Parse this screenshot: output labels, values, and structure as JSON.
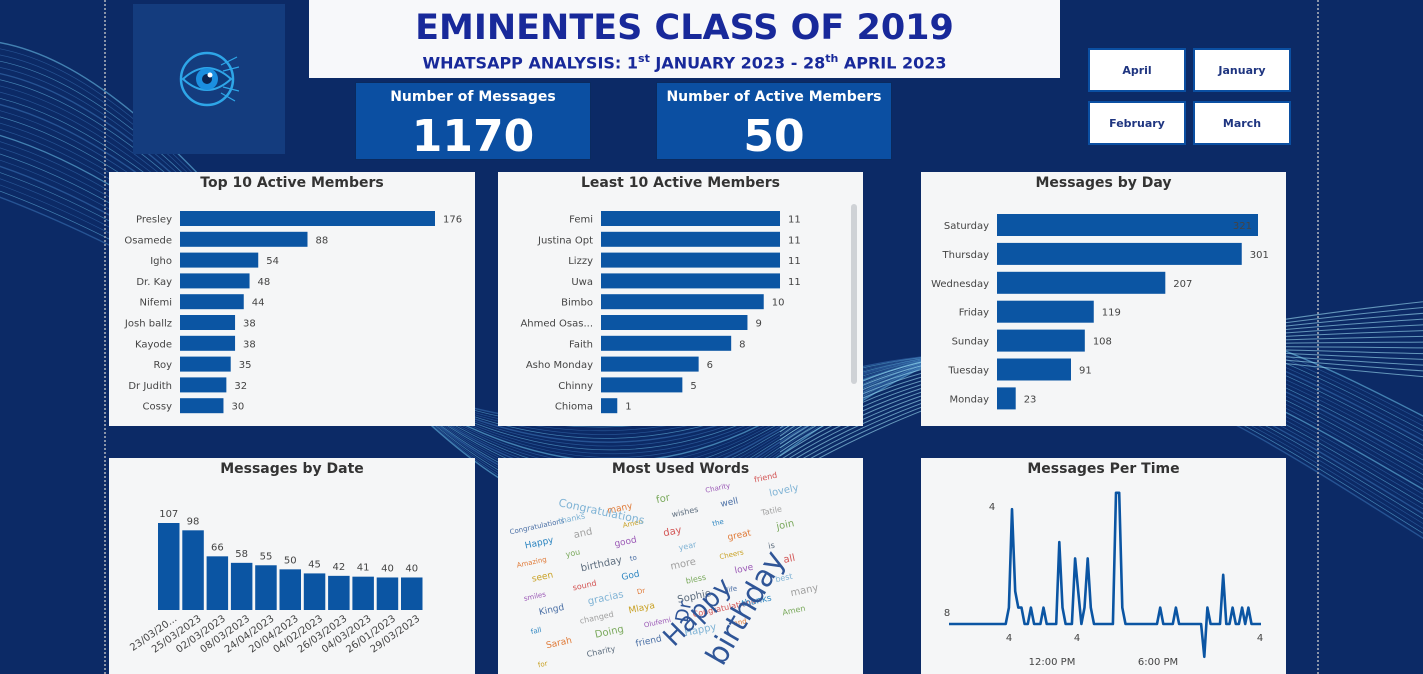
{
  "header": {
    "title": "EMINENTES CLASS OF 2019",
    "sub_pre": "WHATSAPP ANALYSIS: 1",
    "sub_sup1": "st",
    "sub_mid": " JANUARY 2023 - 28",
    "sub_sup2": "th",
    "sub_post": " APRIL 2023"
  },
  "kpis": {
    "messages_label": "Number of Messages",
    "messages_value": "1170",
    "members_label": "Number of Active Members",
    "members_value": "50"
  },
  "slicers": [
    "April",
    "January",
    "February",
    "March"
  ],
  "colors": {
    "bar": "#0b55a3",
    "background": "#0c2a66",
    "title": "#18299a"
  },
  "logo_icon": "eye-icon",
  "chart_data": [
    {
      "type": "bar",
      "orientation": "horizontal",
      "title": "Top 10 Active Members",
      "categories": [
        "Presley",
        "Osamede",
        "Igho",
        "Dr. Kay",
        "Nifemi",
        "Josh ballz",
        "Kayode",
        "Roy",
        "Dr Judith",
        "Cossy"
      ],
      "values": [
        176,
        88,
        54,
        48,
        44,
        38,
        38,
        35,
        32,
        30
      ]
    },
    {
      "type": "bar",
      "orientation": "horizontal",
      "title": "Least 10 Active Members",
      "categories": [
        "Femi",
        "Justina Opt",
        "Lizzy",
        "Uwa",
        "Bimbo",
        "Ahmed Osas...",
        "Faith",
        "Asho Monday",
        "Chinny",
        "Chioma"
      ],
      "values": [
        11,
        11,
        11,
        11,
        10,
        9,
        8,
        6,
        5,
        1
      ]
    },
    {
      "type": "bar",
      "orientation": "horizontal",
      "title": "Messages by Day",
      "categories": [
        "Saturday",
        "Thursday",
        "Wednesday",
        "Friday",
        "Sunday",
        "Tuesday",
        "Monday"
      ],
      "values": [
        321,
        301,
        207,
        119,
        108,
        91,
        23
      ]
    },
    {
      "type": "bar",
      "orientation": "vertical",
      "title": "Messages by Date",
      "categories": [
        "23/03/20...",
        "25/03/2023",
        "02/03/2023",
        "08/03/2023",
        "24/04/2023",
        "20/04/2023",
        "04/02/2023",
        "26/03/2023",
        "04/03/2023",
        "26/01/2023",
        "29/03/2023"
      ],
      "values": [
        107,
        98,
        66,
        58,
        55,
        50,
        45,
        42,
        41,
        40,
        40
      ]
    },
    {
      "type": "line",
      "title": "Messages Per Time",
      "x_ticks": [
        "12:00 PM",
        "6:00 PM"
      ],
      "labels": [
        "8",
        "4",
        "4",
        "4",
        "4"
      ],
      "y": [
        1,
        1,
        1,
        1,
        1,
        1,
        1,
        1,
        1,
        1,
        1,
        1,
        1,
        1,
        1,
        1,
        1,
        1,
        1,
        2,
        8,
        3,
        2,
        2,
        1,
        1,
        2,
        1,
        1,
        1,
        2,
        1,
        1,
        1,
        1,
        6,
        2,
        1,
        1,
        1,
        5,
        3,
        1,
        2,
        5,
        2,
        1,
        1,
        1,
        1,
        1,
        1,
        1,
        9,
        9,
        2,
        1,
        1,
        1,
        1,
        1,
        1,
        1,
        1,
        1,
        1,
        1,
        2,
        1,
        1,
        1,
        1,
        2,
        1,
        1,
        1,
        1,
        1,
        1,
        1,
        1,
        -1,
        2,
        1,
        1,
        1,
        1,
        4,
        1,
        1,
        2,
        1,
        1,
        2,
        1,
        2,
        1,
        1,
        1,
        1
      ]
    }
  ],
  "word_cloud": {
    "title": "Most Used Words",
    "words": [
      "Happy",
      "birthday",
      "Dr",
      "Congratulations",
      "you",
      "God",
      "Sophie",
      "and",
      "to",
      "bless",
      "thanks",
      "good",
      "more",
      "life",
      "Amen",
      "year",
      "love",
      "many",
      "day",
      "Cheers",
      "best",
      "wishes",
      "great",
      "all",
      "for",
      "the",
      "is",
      "Sarah",
      "well",
      "join",
      "fall",
      "Charity",
      "Tatile",
      "Kingd",
      "Doing",
      "lovely",
      "smiles",
      "changed",
      "friend",
      "seen",
      "gracias",
      "Olufemi",
      "Amazing",
      "sound",
      "Mlaya"
    ]
  }
}
